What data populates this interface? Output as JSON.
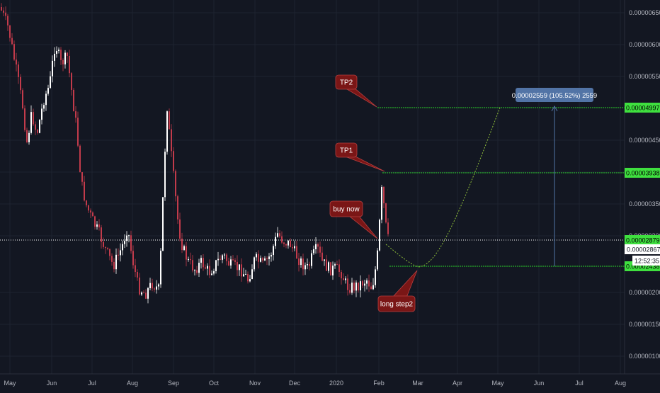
{
  "chart_data": {
    "type": "candlestick",
    "title": "",
    "x_axis": {
      "tick_labels": [
        "May",
        "Jun",
        "Jul",
        "Aug",
        "Sep",
        "Oct",
        "Nov",
        "Dec",
        "2020",
        "Feb",
        "Mar",
        "Apr",
        "May",
        "Jun",
        "Jul",
        "Aug"
      ]
    },
    "y_axis": {
      "range": [
        7e-07,
        6.7e-06
      ],
      "tick_labels": [
        "0.00000650",
        "0.00000600",
        "0.00000550",
        "0.00000450",
        "0.00000400",
        "0.00000350",
        "0.00000300",
        "0.00000200",
        "0.00000150",
        "0.00000100"
      ]
    },
    "price_levels": [
      {
        "value": 4.997e-05,
        "label": "0.00004997",
        "kind": "tp2"
      },
      {
        "value": 3.938e-05,
        "label": "0.00003938",
        "kind": "tp1"
      },
      {
        "value": 2.879e-05,
        "label": "0.00002879",
        "kind": "entry"
      },
      {
        "value": 2.438e-05,
        "label": "0.00002438",
        "kind": "step2"
      }
    ],
    "current_price": {
      "label": "0.00002867",
      "countdown": "12:52:35"
    },
    "measure_label": "0.00002559 (105.52%) 2559",
    "callouts": [
      {
        "id": "tp2",
        "text": "TP2"
      },
      {
        "id": "tp1",
        "text": "TP1"
      },
      {
        "id": "buy",
        "text": "buy now"
      },
      {
        "id": "step2",
        "text": "long step2"
      }
    ],
    "series": [
      {
        "x": [
          "May",
          "Jun",
          "Jul",
          "Aug",
          "Sep",
          "Oct",
          "Nov",
          "Dec",
          "2020",
          "Feb"
        ],
        "values": [
          6.5e-06,
          6e-06,
          3e-06,
          2.1e-06,
          4.1e-06,
          2.6e-06,
          2.7e-06,
          2.5e-06,
          2.1e-06,
          2.9e-06
        ]
      }
    ]
  },
  "colors": {
    "background": "#131722",
    "grid": "#1e2330",
    "axis_text": "#b2b5be",
    "candle_up": "#ffffff",
    "candle_down": "#c23b4b",
    "level_green": "#2bd12b",
    "level_label_bg": "#3fe03f",
    "callout_bg": "#7a1616",
    "callout_border": "#b84040",
    "measure_bg": "#5274a6",
    "curve": "#8fbf3a"
  }
}
